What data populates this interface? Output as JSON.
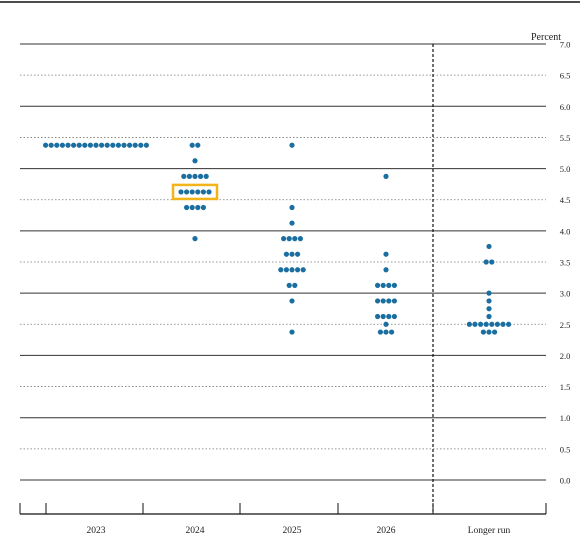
{
  "chart_data": {
    "type": "scatter",
    "subtype": "dot-plot",
    "ylabel": "Percent",
    "ylim": [
      0.0,
      7.0
    ],
    "y_ticks": [
      "0.0",
      "0.5",
      "1.0",
      "1.5",
      "2.0",
      "2.5",
      "3.0",
      "3.5",
      "4.0",
      "4.5",
      "5.0",
      "5.5",
      "6.0",
      "6.5",
      "7.0"
    ],
    "categories": [
      "2023",
      "2024",
      "2025",
      "2026",
      "Longer run"
    ],
    "grid": "horizontal: solid at whole percents, dotted at half percents",
    "separator_before": "Longer run",
    "highlight": {
      "category": "2024",
      "value": 4.625,
      "color": "#f2b418"
    },
    "dot_color": "#1a6fa0",
    "series": [
      {
        "category": "2023",
        "points": [
          {
            "y": 5.375,
            "count": 19
          }
        ]
      },
      {
        "category": "2024",
        "points": [
          {
            "y": 5.375,
            "count": 2
          },
          {
            "y": 5.125,
            "count": 1
          },
          {
            "y": 4.875,
            "count": 5
          },
          {
            "y": 4.625,
            "count": 6
          },
          {
            "y": 4.375,
            "count": 4
          },
          {
            "y": 3.875,
            "count": 1
          }
        ]
      },
      {
        "category": "2025",
        "points": [
          {
            "y": 5.375,
            "count": 1
          },
          {
            "y": 4.375,
            "count": 1
          },
          {
            "y": 4.125,
            "count": 1
          },
          {
            "y": 3.875,
            "count": 4
          },
          {
            "y": 3.625,
            "count": 3
          },
          {
            "y": 3.375,
            "count": 5
          },
          {
            "y": 3.125,
            "count": 2
          },
          {
            "y": 2.875,
            "count": 1
          },
          {
            "y": 2.375,
            "count": 1
          }
        ]
      },
      {
        "category": "2026",
        "points": [
          {
            "y": 4.875,
            "count": 1
          },
          {
            "y": 3.625,
            "count": 1
          },
          {
            "y": 3.375,
            "count": 1
          },
          {
            "y": 3.125,
            "count": 4
          },
          {
            "y": 2.875,
            "count": 4
          },
          {
            "y": 2.625,
            "count": 4
          },
          {
            "y": 2.5,
            "count": 1
          },
          {
            "y": 2.375,
            "count": 3
          }
        ]
      },
      {
        "category": "Longer run",
        "points": [
          {
            "y": 3.75,
            "count": 1
          },
          {
            "y": 3.5,
            "count": 2
          },
          {
            "y": 3.0,
            "count": 1
          },
          {
            "y": 2.875,
            "count": 1
          },
          {
            "y": 2.75,
            "count": 1
          },
          {
            "y": 2.625,
            "count": 1
          },
          {
            "y": 2.5,
            "count": 8
          },
          {
            "y": 2.375,
            "count": 3
          }
        ]
      }
    ]
  }
}
